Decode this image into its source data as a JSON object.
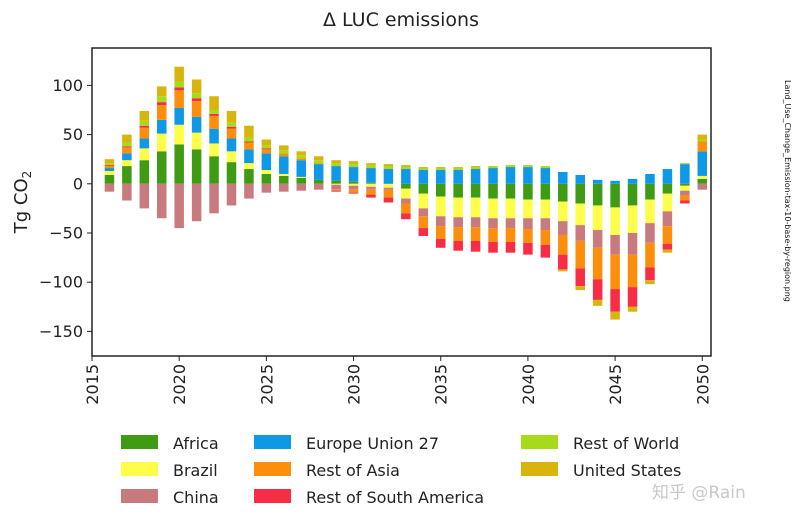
{
  "chart_data": {
    "type": "bar",
    "stacked": true,
    "title": "Δ LUC emissions",
    "ylabel": "Tg CO",
    "ylabel_subscript": "2",
    "side_label": "Land_Use_Change_Emission-tax-10-base-by-region.png",
    "ylim": [
      -175,
      138
    ],
    "y_ticks": [
      100,
      50,
      0,
      -50,
      -100,
      -150
    ],
    "y_tick_labels": [
      "100",
      "50",
      "0",
      "−50",
      "−100",
      "−150"
    ],
    "x_tick_labels": [
      "2015",
      "2020",
      "2025",
      "2030",
      "2035",
      "2040",
      "2045",
      "2050"
    ],
    "x_tick_years": [
      2015,
      2020,
      2025,
      2030,
      2035,
      2040,
      2045,
      2050
    ],
    "x": [
      2016,
      2017,
      2018,
      2019,
      2020,
      2021,
      2022,
      2023,
      2024,
      2025,
      2026,
      2027,
      2028,
      2029,
      2030,
      2031,
      2032,
      2033,
      2034,
      2035,
      2036,
      2037,
      2038,
      2039,
      2040,
      2041,
      2042,
      2043,
      2044,
      2045,
      2046,
      2047,
      2048,
      2049,
      2050
    ],
    "series": [
      {
        "name": "Africa",
        "color": "#3f9a14",
        "values": [
          9,
          18,
          24,
          33,
          40,
          35,
          28,
          22,
          15,
          10,
          8,
          6,
          4,
          3,
          2,
          1,
          0,
          -5,
          -10,
          -13,
          -14,
          -14,
          -15,
          -15,
          -16,
          -16,
          -18,
          -20,
          -22,
          -24,
          -22,
          -16,
          -10,
          -2,
          5
        ]
      },
      {
        "name": "Brazil",
        "color": "#fefe4a",
        "values": [
          4,
          6,
          12,
          18,
          20,
          17,
          13,
          11,
          6,
          4,
          2,
          1,
          0,
          -1,
          -2,
          -3,
          -4,
          -10,
          -15,
          -20,
          -20,
          -20,
          -20,
          -20,
          -19,
          -19,
          -20,
          -22,
          -25,
          -28,
          -28,
          -24,
          -18,
          -5,
          3
        ]
      },
      {
        "name": "China",
        "color": "#c97a7f",
        "values": [
          -8,
          -17,
          -25,
          -35,
          -45,
          -38,
          -30,
          -22,
          -15,
          -9,
          -8,
          -7,
          -6,
          -5,
          -4,
          -3,
          -2,
          -5,
          -8,
          -10,
          -10,
          -10,
          -10,
          -10,
          -11,
          -12,
          -14,
          -16,
          -18,
          -20,
          -22,
          -20,
          -15,
          -5,
          -6
        ]
      },
      {
        "name": "Europe Union 27",
        "color": "#0f98e6",
        "values": [
          3,
          7,
          10,
          14,
          17,
          16,
          15,
          13,
          14,
          17,
          18,
          17,
          16,
          15,
          15,
          15,
          15,
          15,
          14,
          14,
          14,
          15,
          16,
          17,
          17,
          16,
          12,
          9,
          4,
          3,
          5,
          10,
          15,
          20,
          25
        ]
      },
      {
        "name": "Rest of Asia",
        "color": "#fd8e0c",
        "values": [
          2,
          6,
          11,
          15,
          18,
          16,
          13,
          10,
          7,
          4,
          3,
          2,
          1,
          -1,
          -3,
          -5,
          -8,
          -10,
          -12,
          -13,
          -14,
          -14,
          -14,
          -14,
          -14,
          -15,
          -20,
          -28,
          -32,
          -35,
          -33,
          -25,
          -18,
          -5,
          10
        ]
      },
      {
        "name": "Rest of South America",
        "color": "#f72c45",
        "values": [
          1,
          1,
          2,
          3,
          3,
          3,
          2,
          2,
          1,
          1,
          0,
          0,
          0,
          -1,
          -1,
          -3,
          -5,
          -6,
          -8,
          -9,
          -10,
          -11,
          -11,
          -11,
          -12,
          -13,
          -15,
          -18,
          -21,
          -23,
          -20,
          -13,
          -6,
          -3,
          0
        ]
      },
      {
        "name": "Rest of World",
        "color": "#a6da1a",
        "values": [
          2,
          4,
          5,
          6,
          6,
          5,
          4,
          4,
          4,
          3,
          3,
          3,
          3,
          3,
          3,
          3,
          3,
          2,
          2,
          2,
          2,
          2,
          2,
          2,
          2,
          2,
          0,
          0,
          0,
          0,
          0,
          0,
          0,
          1,
          2
        ]
      },
      {
        "name": "United States",
        "color": "#d8b50d",
        "values": [
          4,
          8,
          10,
          10,
          15,
          14,
          14,
          12,
          12,
          6,
          5,
          4,
          4,
          3,
          3,
          2,
          2,
          2,
          1,
          1,
          1,
          1,
          0,
          0,
          0,
          0,
          -2,
          -4,
          -6,
          -8,
          -5,
          -4,
          -3,
          0,
          5
        ]
      }
    ],
    "legend": {
      "placement": "bottom",
      "columns": 3
    },
    "grid": false
  },
  "watermark": "知乎 @Rain"
}
